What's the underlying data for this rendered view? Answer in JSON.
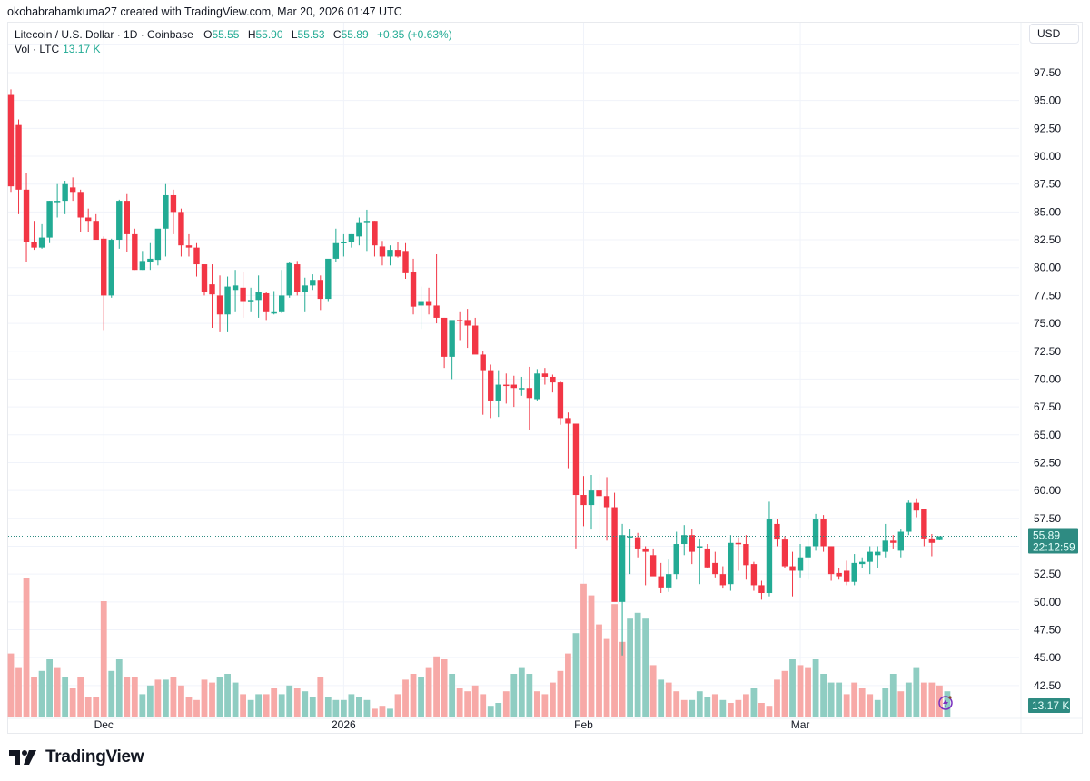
{
  "credit": "okohabrahamkuma27 created with TradingView.com, Mar 20, 2026 01:47 UTC",
  "legend": {
    "symbol": "Litecoin / U.S. Dollar · 1D · Coinbase",
    "o_label": "O",
    "o": "55.55",
    "h_label": "H",
    "h": "55.90",
    "l_label": "L",
    "l": "55.53",
    "c_label": "C",
    "c": "55.89",
    "change": "+0.35 (+0.63%)",
    "vol_label": "Vol · LTC",
    "vol": "13.17 K"
  },
  "currency_button": "USD",
  "price_tag": {
    "price": "55.89",
    "countdown": "22:12:59"
  },
  "volume_tag": "13.17 K",
  "brand": "TradingView",
  "colors": {
    "up": "#22ab94",
    "down": "#f23645",
    "up_vol": "#8fcdc2",
    "down_vol": "#f7a9a7",
    "grid": "#f0f3fa",
    "tag": "#2e8b82"
  },
  "chart_data": {
    "type": "candlestick",
    "title": "Litecoin / U.S. Dollar · 1D · Coinbase",
    "xlabel": "",
    "ylabel": "USD",
    "ylim": [
      41.0,
      100.0
    ],
    "y_ticks": [
      "97.50",
      "95.00",
      "92.50",
      "90.00",
      "87.50",
      "85.00",
      "82.50",
      "80.00",
      "77.50",
      "75.00",
      "72.50",
      "70.00",
      "67.50",
      "65.00",
      "62.50",
      "60.00",
      "57.50",
      "52.50",
      "50.00",
      "47.50",
      "45.00",
      "42.50"
    ],
    "x_ticks": [
      {
        "label": "Dec",
        "index": 12
      },
      {
        "label": "2026",
        "index": 43
      },
      {
        "label": "Feb",
        "index": 74
      },
      {
        "label": "Mar",
        "index": 102
      }
    ],
    "grid": true,
    "last_price": 55.89,
    "ohlc": [
      [
        95.5,
        96.0,
        86.8,
        87.3
      ],
      [
        92.8,
        93.3,
        84.8,
        87.0
      ],
      [
        87.0,
        88.5,
        80.5,
        82.3
      ],
      [
        82.3,
        84.2,
        81.6,
        81.8
      ],
      [
        81.8,
        83.9,
        81.7,
        82.7
      ],
      [
        82.7,
        86.0,
        82.2,
        86.0
      ],
      [
        86.0,
        87.5,
        84.5,
        86.0
      ],
      [
        86.0,
        87.8,
        84.8,
        87.5
      ],
      [
        87.2,
        88.1,
        86.0,
        86.8
      ],
      [
        86.8,
        87.0,
        83.2,
        84.5
      ],
      [
        84.5,
        85.3,
        83.2,
        84.2
      ],
      [
        84.2,
        84.8,
        82.7,
        82.5
      ],
      [
        82.6,
        82.8,
        74.4,
        77.5
      ],
      [
        77.5,
        82.6,
        77.3,
        82.5
      ],
      [
        82.5,
        86.1,
        81.7,
        86.0
      ],
      [
        86.0,
        86.6,
        81.4,
        83.0
      ],
      [
        83.0,
        83.5,
        79.8,
        79.8
      ],
      [
        79.8,
        81.5,
        79.8,
        80.6
      ],
      [
        80.5,
        82.2,
        79.8,
        80.8
      ],
      [
        80.7,
        82.6,
        80.2,
        83.5
      ],
      [
        83.5,
        87.5,
        81.0,
        86.5
      ],
      [
        86.5,
        87.0,
        83.0,
        85.0
      ],
      [
        85.0,
        85.3,
        81.0,
        82.0
      ],
      [
        82.0,
        83.0,
        81.0,
        81.8
      ],
      [
        81.8,
        82.2,
        79.2,
        80.3
      ],
      [
        80.3,
        80.3,
        77.5,
        77.8
      ],
      [
        78.5,
        80.3,
        74.6,
        77.6
      ],
      [
        77.5,
        79.3,
        74.2,
        75.8
      ],
      [
        75.8,
        79.2,
        74.2,
        78.3
      ],
      [
        78.0,
        79.8,
        76.0,
        78.4
      ],
      [
        78.2,
        79.6,
        75.5,
        77.0
      ],
      [
        77.0,
        78.2,
        76.0,
        77.1
      ],
      [
        77.1,
        79.3,
        75.5,
        77.8
      ],
      [
        77.7,
        77.8,
        75.3,
        76.0
      ],
      [
        76.0,
        77.9,
        75.8,
        76.0
      ],
      [
        76.0,
        79.8,
        75.9,
        77.5
      ],
      [
        77.5,
        80.5,
        77.3,
        80.4
      ],
      [
        80.3,
        80.6,
        77.5,
        77.8
      ],
      [
        77.8,
        79.1,
        76.0,
        78.4
      ],
      [
        78.4,
        79.4,
        78.0,
        78.9
      ],
      [
        78.9,
        79.3,
        76.2,
        77.2
      ],
      [
        77.2,
        80.5,
        77.0,
        80.8
      ],
      [
        80.8,
        83.5,
        80.5,
        82.2
      ],
      [
        82.2,
        83.0,
        81.0,
        82.3
      ],
      [
        82.3,
        83.0,
        81.8,
        83.0
      ],
      [
        82.8,
        84.5,
        82.0,
        84.0
      ],
      [
        84.0,
        85.2,
        81.5,
        84.2
      ],
      [
        84.2,
        84.2,
        81.0,
        82.0
      ],
      [
        81.9,
        82.4,
        80.2,
        81.0
      ],
      [
        81.0,
        82.0,
        80.2,
        81.6
      ],
      [
        81.6,
        82.3,
        80.9,
        81.0
      ],
      [
        81.5,
        82.2,
        79.0,
        79.5
      ],
      [
        79.6,
        80.8,
        75.8,
        76.5
      ],
      [
        76.6,
        78.3,
        74.5,
        77.0
      ],
      [
        77.0,
        78.2,
        75.8,
        76.6
      ],
      [
        76.6,
        81.2,
        75.0,
        75.5
      ],
      [
        75.5,
        75.5,
        71.0,
        72.0
      ],
      [
        72.0,
        73.0,
        70.0,
        75.3
      ],
      [
        75.3,
        76.0,
        73.5,
        75.2
      ],
      [
        75.3,
        76.3,
        72.8,
        74.8
      ],
      [
        74.8,
        75.5,
        72.5,
        72.2
      ],
      [
        72.2,
        72.5,
        66.8,
        70.8
      ],
      [
        70.8,
        71.3,
        66.5,
        68.0
      ],
      [
        68.0,
        70.8,
        66.6,
        69.5
      ],
      [
        69.5,
        70.5,
        67.8,
        69.4
      ],
      [
        69.5,
        70.3,
        67.5,
        69.2
      ],
      [
        69.2,
        70.2,
        68.5,
        69.2
      ],
      [
        69.2,
        71.1,
        65.4,
        68.3
      ],
      [
        68.2,
        70.9,
        68.0,
        70.5
      ],
      [
        70.5,
        71.0,
        69.5,
        70.2
      ],
      [
        70.2,
        70.4,
        68.8,
        69.7
      ],
      [
        69.7,
        69.8,
        65.9,
        66.5
      ],
      [
        66.5,
        67.0,
        62.0,
        66.0
      ],
      [
        66.0,
        66.0,
        54.8,
        59.6
      ],
      [
        59.6,
        61.3,
        56.8,
        58.7
      ],
      [
        58.7,
        61.4,
        56.5,
        60.0
      ],
      [
        60.0,
        61.5,
        55.5,
        59.5
      ],
      [
        59.5,
        61.2,
        55.5,
        58.5
      ],
      [
        58.5,
        59.8,
        50.5,
        50.0
      ],
      [
        50.0,
        57.0,
        45.2,
        56.0
      ],
      [
        55.8,
        56.5,
        52.5,
        55.9
      ],
      [
        55.8,
        56.2,
        54.0,
        54.8
      ],
      [
        54.8,
        55.0,
        51.5,
        54.5
      ],
      [
        54.2,
        54.8,
        52.8,
        52.3
      ],
      [
        52.3,
        53.5,
        50.8,
        51.3
      ],
      [
        51.3,
        53.8,
        50.9,
        52.5
      ],
      [
        52.5,
        56.3,
        52.0,
        55.2
      ],
      [
        55.2,
        56.9,
        54.2,
        56.0
      ],
      [
        56.0,
        56.5,
        53.4,
        54.5
      ],
      [
        55.0,
        55.7,
        51.6,
        55.0
      ],
      [
        54.8,
        55.2,
        53.0,
        53.1
      ],
      [
        53.5,
        54.5,
        52.2,
        52.5
      ],
      [
        52.5,
        53.2,
        51.2,
        51.5
      ],
      [
        51.6,
        56.0,
        51.0,
        55.3
      ],
      [
        55.3,
        55.8,
        52.8,
        55.2
      ],
      [
        55.2,
        56.0,
        52.0,
        53.3
      ],
      [
        53.4,
        53.6,
        51.0,
        51.5
      ],
      [
        51.5,
        51.9,
        50.2,
        50.8
      ],
      [
        50.8,
        59.0,
        50.5,
        57.4
      ],
      [
        57.0,
        57.4,
        55.0,
        55.6
      ],
      [
        55.6,
        55.9,
        53.0,
        53.2
      ],
      [
        53.2,
        54.5,
        50.5,
        52.8
      ],
      [
        52.8,
        55.2,
        52.2,
        54.0
      ],
      [
        54.0,
        56.0,
        52.0,
        55.0
      ],
      [
        55.0,
        57.9,
        54.6,
        57.4
      ],
      [
        57.4,
        57.8,
        54.5,
        55.0
      ],
      [
        55.0,
        55.0,
        51.9,
        52.5
      ],
      [
        52.6,
        53.0,
        52.0,
        52.3
      ],
      [
        52.8,
        53.7,
        51.5,
        51.8
      ],
      [
        51.8,
        54.3,
        51.5,
        53.5
      ],
      [
        53.4,
        54.0,
        53.0,
        53.6
      ],
      [
        53.6,
        55.0,
        52.5,
        54.5
      ],
      [
        54.2,
        55.0,
        53.0,
        54.5
      ],
      [
        54.5,
        57.0,
        54.0,
        55.5
      ],
      [
        55.5,
        56.0,
        54.8,
        55.3
      ],
      [
        54.6,
        56.5,
        54.0,
        56.3
      ],
      [
        56.3,
        59.1,
        56.0,
        58.9
      ],
      [
        58.9,
        59.3,
        57.6,
        58.2
      ],
      [
        58.3,
        57.8,
        55.0,
        55.7
      ],
      [
        55.7,
        56.1,
        54.1,
        55.3
      ],
      [
        55.55,
        55.9,
        55.53,
        55.89
      ]
    ],
    "volume_rel": [
      62,
      57,
      88,
      54,
      56,
      60,
      57,
      54,
      50,
      54,
      47,
      47,
      80,
      56,
      60,
      54,
      54,
      48,
      51,
      53,
      53,
      54,
      51,
      47,
      46,
      53,
      52,
      54,
      55,
      52,
      48,
      46,
      48,
      48,
      50,
      48,
      51,
      50,
      49,
      47,
      54,
      47,
      46,
      46,
      48,
      47,
      46,
      43,
      44,
      43,
      48,
      53,
      55,
      54,
      57,
      61,
      60,
      55,
      50,
      49,
      51,
      48,
      44,
      45,
      49,
      55,
      57,
      55,
      49,
      48,
      52,
      56,
      62,
      69,
      86,
      82,
      72,
      67,
      79,
      66,
      74,
      76,
      74,
      58,
      53,
      52,
      49,
      46,
      46,
      49,
      47,
      48,
      46,
      45,
      46,
      48,
      50,
      45,
      44,
      53,
      56,
      60,
      58,
      57,
      60,
      55,
      52,
      52,
      48,
      52,
      50,
      48,
      46,
      50,
      55,
      49,
      52,
      57,
      52,
      52,
      51,
      49
    ],
    "volume_up": [
      0,
      0,
      0,
      0,
      1,
      1,
      0,
      1,
      0,
      0,
      0,
      0,
      0,
      1,
      1,
      0,
      0,
      1,
      1,
      0,
      1,
      0,
      0,
      0,
      0,
      0,
      0,
      1,
      1,
      1,
      0,
      1,
      1,
      0,
      0,
      1,
      1,
      0,
      1,
      1,
      0,
      1,
      1,
      1,
      1,
      1,
      1,
      0,
      0,
      1,
      0,
      0,
      0,
      1,
      0,
      0,
      0,
      1,
      0,
      0,
      0,
      0,
      1,
      1,
      0,
      1,
      1,
      1,
      0,
      0,
      0,
      0,
      0,
      1,
      0,
      0,
      0,
      0,
      0,
      0,
      1,
      1,
      1,
      0,
      1,
      0,
      0,
      0,
      1,
      1,
      1,
      0,
      1,
      0,
      0,
      0,
      1,
      0,
      0,
      0,
      0,
      1,
      0,
      0,
      1,
      1,
      1,
      1,
      0,
      0,
      0,
      0,
      1,
      1,
      1,
      0,
      1,
      1,
      0,
      0,
      0,
      1
    ]
  }
}
